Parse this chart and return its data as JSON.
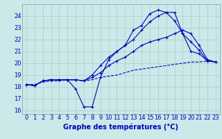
{
  "xlabel": "Graphe des températures (°C)",
  "bg_color": "#cce8e8",
  "grid_color": "#aacccc",
  "line_color": "#0000bb",
  "hours": [
    0,
    1,
    2,
    3,
    4,
    5,
    6,
    7,
    8,
    9,
    10,
    11,
    12,
    13,
    14,
    15,
    16,
    17,
    18,
    19,
    20,
    21,
    22,
    23
  ],
  "line1": [
    18.2,
    18.1,
    18.5,
    18.6,
    18.6,
    18.6,
    17.8,
    16.3,
    16.3,
    18.8,
    20.3,
    21.0,
    21.5,
    22.8,
    23.2,
    24.2,
    24.5,
    24.3,
    24.3,
    22.5,
    21.8,
    21.1,
    20.2,
    20.1
  ],
  "line2": [
    18.2,
    18.1,
    18.5,
    18.6,
    18.6,
    18.6,
    18.6,
    18.5,
    19.0,
    19.8,
    20.5,
    21.0,
    21.5,
    22.0,
    22.8,
    23.5,
    24.0,
    24.3,
    23.6,
    22.5,
    21.0,
    20.8,
    20.2,
    20.1
  ],
  "line3": [
    18.2,
    18.1,
    18.5,
    18.6,
    18.6,
    18.6,
    18.6,
    18.5,
    18.8,
    19.2,
    19.8,
    20.2,
    20.5,
    21.0,
    21.5,
    21.8,
    22.0,
    22.2,
    22.5,
    22.8,
    22.5,
    21.5,
    20.3,
    20.1
  ],
  "line4": [
    18.2,
    18.2,
    18.4,
    18.5,
    18.5,
    18.6,
    18.6,
    18.5,
    18.6,
    18.8,
    18.9,
    19.0,
    19.2,
    19.4,
    19.5,
    19.6,
    19.7,
    19.8,
    19.9,
    20.0,
    20.1,
    20.1,
    20.2,
    20.1
  ],
  "ylim": [
    15.7,
    25.0
  ],
  "yticks": [
    16,
    17,
    18,
    19,
    20,
    21,
    22,
    23,
    24
  ],
  "xlim": [
    -0.5,
    23.5
  ],
  "tick_fontsize": 6.0,
  "label_fontsize": 7.0
}
